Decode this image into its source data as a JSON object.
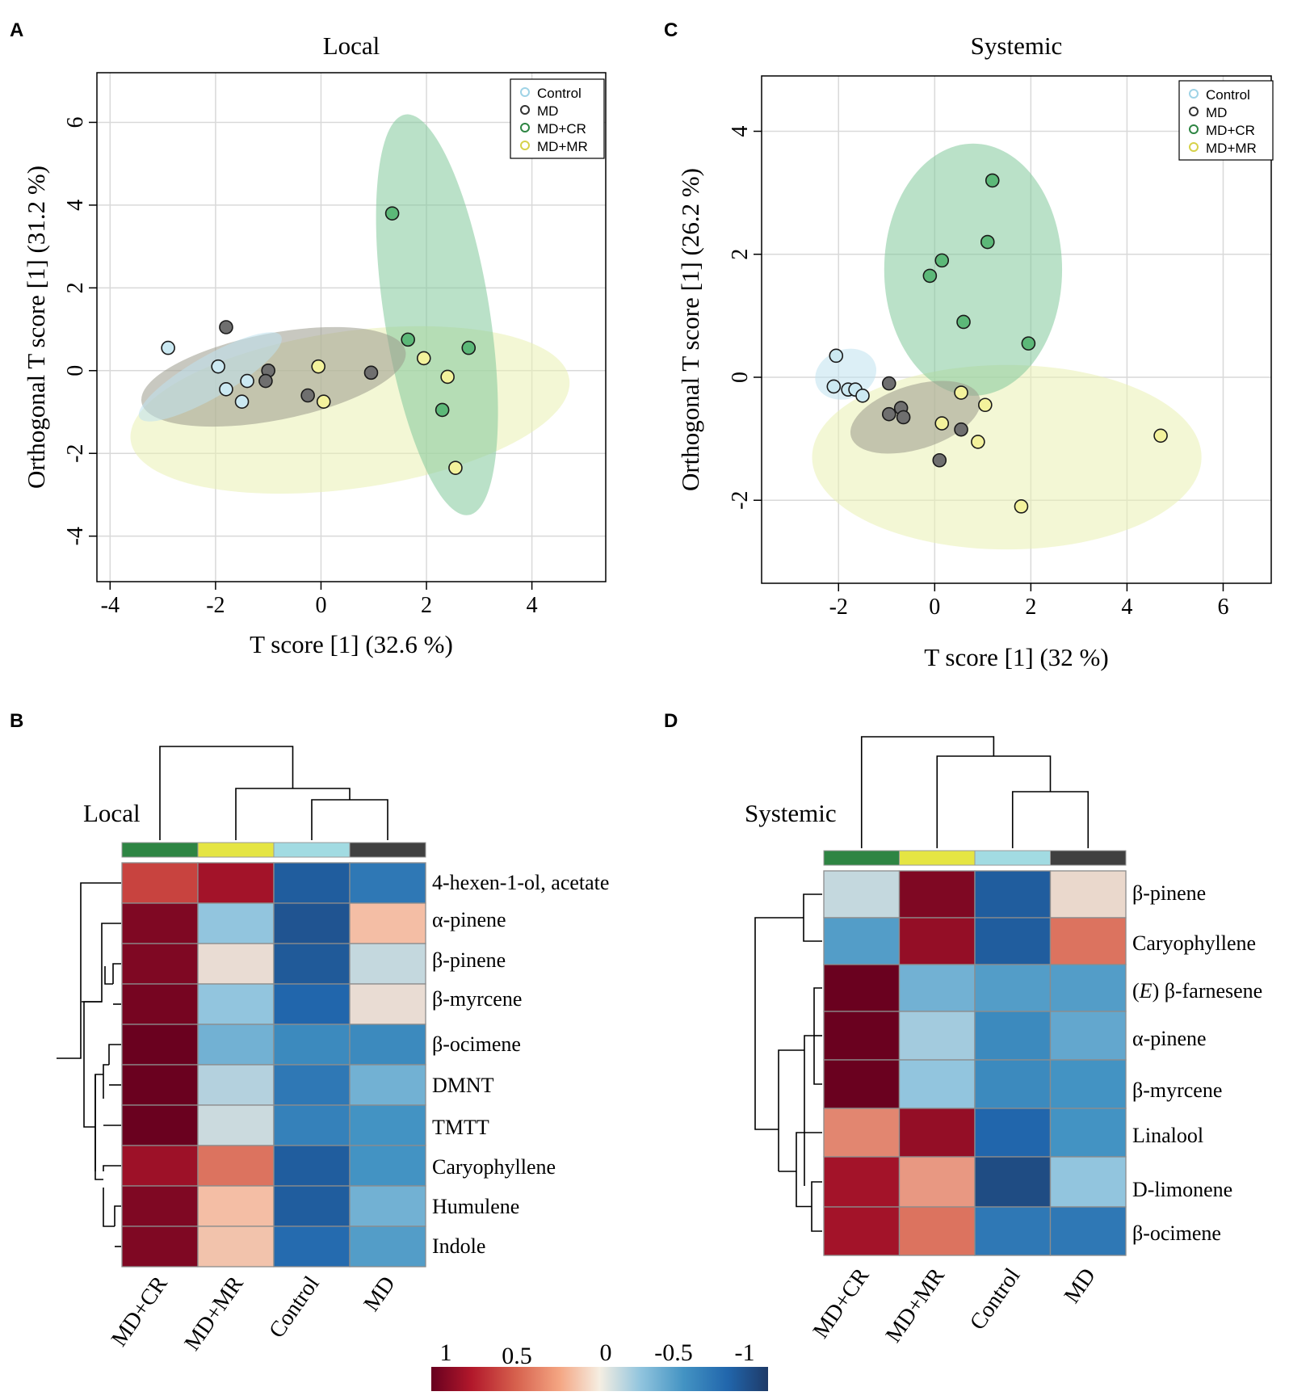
{
  "colors": {
    "Control": "#cbe9f2",
    "MD": "#6f6f6f",
    "MD+CR": "#5cb878",
    "MD+MR": "#f3f29c",
    "Control_ellipse": "#bfe2ee",
    "MD_ellipse": "#9a9a8c",
    "MD+CR_ellipse": "#82c99a",
    "MD+MR_ellipse": "#e9f1b2",
    "bar_MD+CR": "#2e8543",
    "bar_MD+MR": "#e5e543",
    "bar_Control": "#a2dbe2",
    "bar_MD": "#404040"
  },
  "chart_data": [
    {
      "panel": "A",
      "type": "scatter",
      "title": "Local",
      "xlabel": "T score [1] (32.6 %)",
      "ylabel": "Orthogonal T score [1] (31.2 %)",
      "xlim": [
        -4.25,
        5.4
      ],
      "ylim": [
        -5.1,
        7.2
      ],
      "xticks": [
        -4,
        -2,
        0,
        2,
        4
      ],
      "yticks": [
        -4,
        -2,
        0,
        2,
        4,
        6
      ],
      "legend_position": "top-right",
      "legend": [
        "Control",
        "MD",
        "MD+CR",
        "MD+MR"
      ],
      "series": [
        {
          "name": "Control",
          "points": [
            [
              -2.9,
              0.55
            ],
            [
              -1.95,
              0.1
            ],
            [
              -1.8,
              -0.45
            ],
            [
              -1.4,
              -0.25
            ],
            [
              -1.5,
              -0.75
            ]
          ]
        },
        {
          "name": "MD",
          "points": [
            [
              -1.8,
              1.05
            ],
            [
              -1.0,
              0.0
            ],
            [
              -1.05,
              -0.25
            ],
            [
              -0.25,
              -0.6
            ],
            [
              0.95,
              -0.05
            ]
          ]
        },
        {
          "name": "MD+CR",
          "points": [
            [
              1.35,
              3.8
            ],
            [
              1.65,
              0.75
            ],
            [
              2.8,
              0.55
            ],
            [
              2.3,
              -0.95
            ]
          ]
        },
        {
          "name": "MD+MR",
          "points": [
            [
              -0.05,
              0.1
            ],
            [
              0.05,
              -0.75
            ],
            [
              1.95,
              0.3
            ],
            [
              2.4,
              -0.15
            ],
            [
              2.55,
              -2.35
            ]
          ]
        }
      ],
      "ellipses": [
        {
          "name": "MD+MR",
          "cx": 0.55,
          "cy": -0.95,
          "rx": 4.2,
          "ry": 1.9,
          "angle": -8
        },
        {
          "name": "MD+CR",
          "cx": 2.2,
          "cy": 1.35,
          "rx": 1.0,
          "ry": 4.9,
          "angle": -9
        },
        {
          "name": "MD",
          "cx": -0.9,
          "cy": -0.15,
          "rx": 2.55,
          "ry": 1.05,
          "angle": -11
        },
        {
          "name": "Control",
          "cx": -2.1,
          "cy": -0.15,
          "rx": 1.55,
          "ry": 0.5,
          "angle": -30
        }
      ]
    },
    {
      "panel": "C",
      "type": "scatter",
      "title": "Systemic",
      "xlabel": "T score [1] (32 %)",
      "ylabel": "Orthogonal T score [1] (26.2 %)",
      "xlim": [
        -3.6,
        7.0
      ],
      "ylim": [
        -3.35,
        4.9
      ],
      "xticks": [
        -2,
        0,
        2,
        4,
        6
      ],
      "yticks": [
        -2,
        0,
        2,
        4
      ],
      "legend_position": "top-right",
      "legend": [
        "Control",
        "MD",
        "MD+CR",
        "MD+MR"
      ],
      "series": [
        {
          "name": "Control",
          "points": [
            [
              -2.05,
              0.35
            ],
            [
              -2.1,
              -0.15
            ],
            [
              -1.8,
              -0.2
            ],
            [
              -1.65,
              -0.2
            ],
            [
              -1.5,
              -0.3
            ]
          ]
        },
        {
          "name": "MD",
          "points": [
            [
              -0.95,
              -0.1
            ],
            [
              -0.95,
              -0.6
            ],
            [
              -0.7,
              -0.5
            ],
            [
              -0.65,
              -0.65
            ],
            [
              0.55,
              -0.85
            ],
            [
              0.1,
              -1.35
            ]
          ]
        },
        {
          "name": "MD+CR",
          "points": [
            [
              1.2,
              3.2
            ],
            [
              1.1,
              2.2
            ],
            [
              0.15,
              1.9
            ],
            [
              -0.1,
              1.65
            ],
            [
              0.6,
              0.9
            ],
            [
              1.95,
              0.55
            ]
          ]
        },
        {
          "name": "MD+MR",
          "points": [
            [
              0.55,
              -0.25
            ],
            [
              1.05,
              -0.45
            ],
            [
              0.15,
              -0.75
            ],
            [
              0.9,
              -1.05
            ],
            [
              4.7,
              -0.95
            ],
            [
              1.8,
              -2.1
            ]
          ]
        }
      ],
      "ellipses": [
        {
          "name": "MD+MR",
          "cx": 1.5,
          "cy": -1.3,
          "rx": 4.05,
          "ry": 1.5,
          "angle": 0
        },
        {
          "name": "MD+CR",
          "cx": 0.8,
          "cy": 1.75,
          "rx": 1.85,
          "ry": 2.05,
          "angle": 0
        },
        {
          "name": "Control",
          "cx": -1.85,
          "cy": 0.05,
          "rx": 0.65,
          "ry": 0.4,
          "angle": -20
        },
        {
          "name": "MD",
          "cx": -0.4,
          "cy": -0.65,
          "rx": 1.4,
          "ry": 0.52,
          "angle": -17
        }
      ]
    },
    {
      "panel": "B",
      "type": "heatmap",
      "title": "Local",
      "columns": [
        "MD+CR",
        "MD+MR",
        "Control",
        "MD"
      ],
      "rows": [
        "4-hexen-1-ol, acetate",
        "α-pinene",
        "β-pinene",
        "β-myrcene",
        "β-ocimene",
        "DMNT",
        "TMTT",
        "Caryophyllene",
        "Humulene",
        "Indole"
      ],
      "values": [
        [
          0.6,
          0.8,
          -0.8,
          -0.65
        ],
        [
          0.92,
          -0.25,
          -0.85,
          0.25
        ],
        [
          0.92,
          0.05,
          -0.82,
          -0.1
        ],
        [
          0.95,
          -0.25,
          -0.75,
          0.05
        ],
        [
          0.99,
          -0.35,
          -0.55,
          -0.55
        ],
        [
          0.99,
          -0.15,
          -0.65,
          -0.35
        ],
        [
          0.99,
          -0.08,
          -0.6,
          -0.5
        ],
        [
          0.82,
          0.45,
          -0.8,
          -0.5
        ],
        [
          0.92,
          0.25,
          -0.8,
          -0.35
        ],
        [
          0.92,
          0.22,
          -0.72,
          -0.45
        ]
      ]
    },
    {
      "panel": "D",
      "type": "heatmap",
      "title": "Systemic",
      "columns": [
        "MD+CR",
        "MD+MR",
        "Control",
        "MD"
      ],
      "rows": [
        "β-pinene",
        "Caryophyllene",
        "β-farnesene",
        "α-pinene",
        "β-myrcene",
        "Linalool",
        "D-limonene",
        "β-ocimene"
      ],
      "row_prefix_italic": [
        "",
        "",
        "(E)",
        "",
        "",
        "",
        "",
        ""
      ],
      "values": [
        [
          -0.1,
          0.92,
          -0.8,
          0.08
        ],
        [
          -0.45,
          0.85,
          -0.8,
          0.45
        ],
        [
          0.99,
          -0.35,
          -0.45,
          -0.45
        ],
        [
          0.99,
          -0.2,
          -0.55,
          -0.4
        ],
        [
          0.99,
          -0.25,
          -0.55,
          -0.5
        ],
        [
          0.4,
          0.85,
          -0.75,
          -0.5
        ],
        [
          0.8,
          0.35,
          -0.9,
          -0.25
        ],
        [
          0.8,
          0.45,
          -0.65,
          -0.65
        ]
      ]
    }
  ],
  "panel_labels": [
    "A",
    "B",
    "C",
    "D"
  ],
  "colorscale": {
    "tick_labels": [
      "1",
      "0.5",
      "0",
      "-0.5",
      "-1"
    ]
  }
}
